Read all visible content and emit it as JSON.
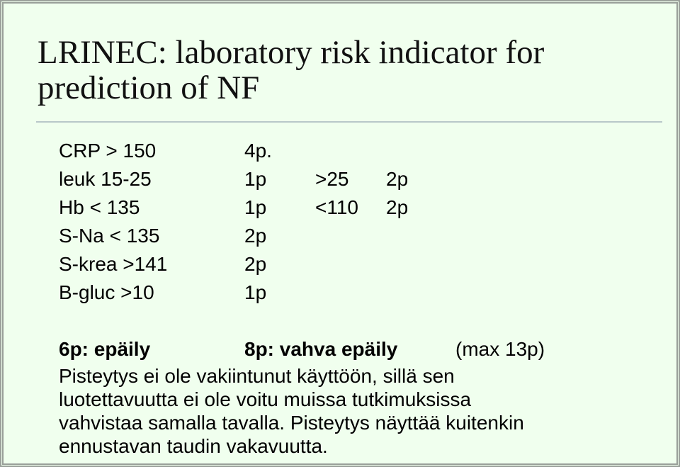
{
  "title": [
    "LRINEC: laboratory risk indicator for",
    "prediction of NF"
  ],
  "rows": [
    [
      "CRP > 150",
      "4p."
    ],
    [
      "leuk 15-25",
      "1p",
      ">25",
      "2p"
    ],
    [
      "Hb < 135",
      "1p",
      "<110",
      "2p"
    ],
    [
      "S-Na < 135",
      "2p"
    ],
    [
      "S-krea >141",
      "2p"
    ],
    [
      "B-gluc >10",
      "1p"
    ]
  ],
  "summary": [
    "6p: epäily",
    "8p: vahva epäily",
    "(max 13p)"
  ],
  "note": [
    "Pisteytys ei ole vakiintunut käyttöön, sillä sen",
    "luotettavuutta ei ole voitu muissa tutkimuksissa",
    "vahvistaa samalla tavalla. Pisteytys näyttää kuitenkin",
    "ennustavan taudin vakavuutta."
  ]
}
